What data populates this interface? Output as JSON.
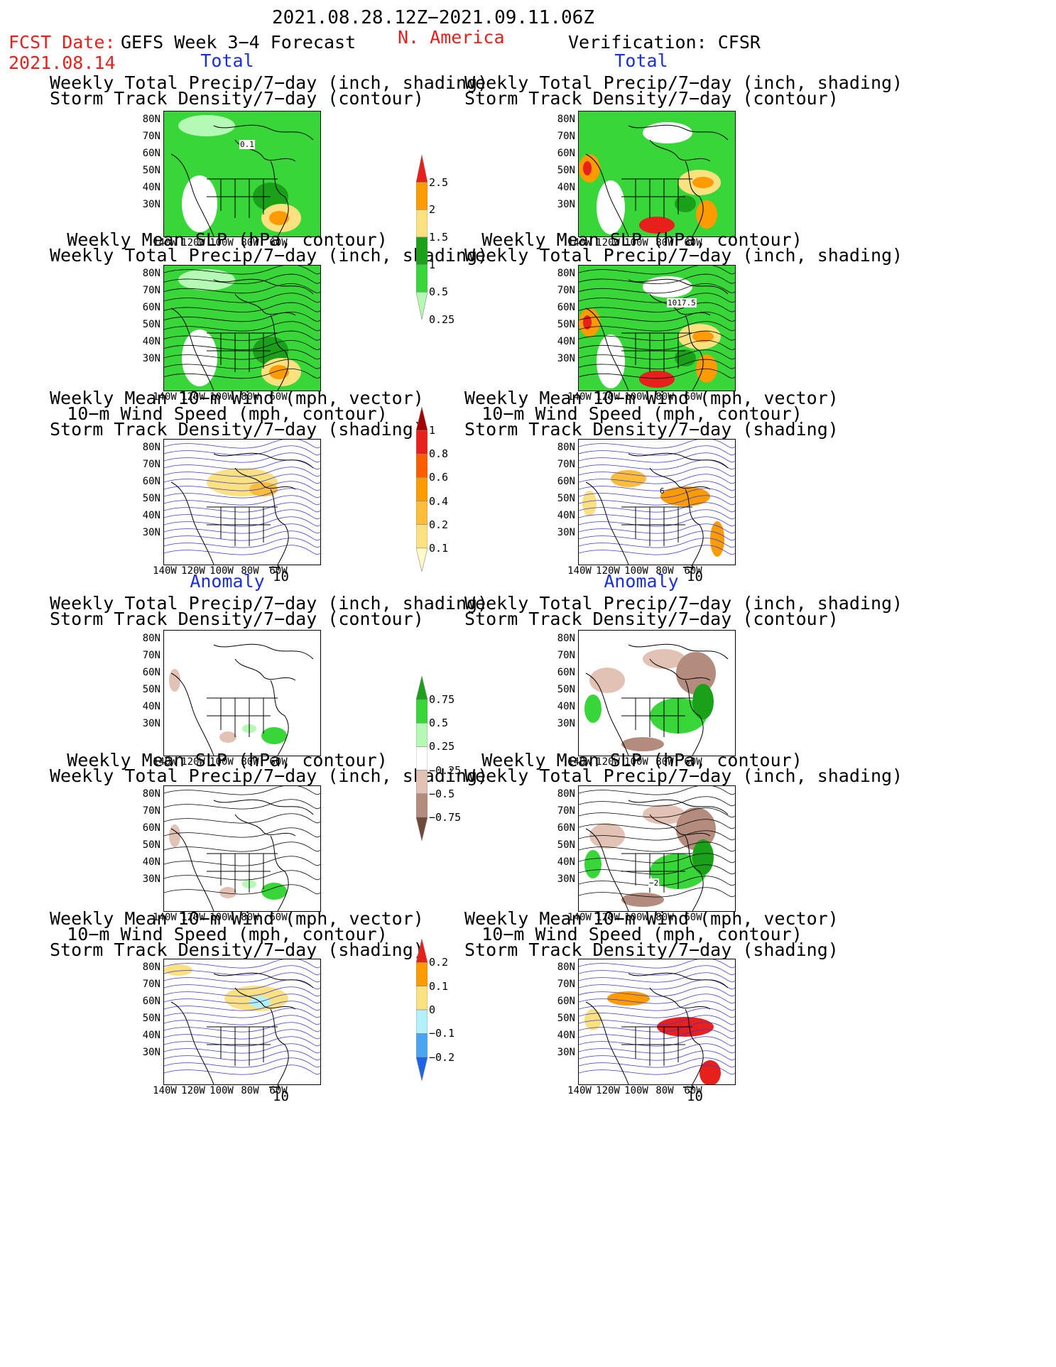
{
  "header": {
    "date_range": "2021.08.28.12Z−2021.09.11.06Z",
    "fcst_label": "FCST Date:",
    "fcst_date": "2021.08.14",
    "model": "GEFS Week 3−4 Forecast",
    "region": "N. America",
    "verification": "Verification: CFSR"
  },
  "sections": {
    "total": "Total",
    "anomaly": "Anomaly"
  },
  "titles": {
    "precip_storm_1": "Weekly Total Precip/7−day (inch, shading)",
    "precip_storm_2": "Storm Track Density/7−day (contour)",
    "slp_1": "Weekly Mean SLP (hPa, contour)",
    "slp_2": "Weekly Total Precip/7−day (inch, shading)",
    "wind_1": "Weekly Mean 10−m Wind (mph, vector)",
    "wind_2": "10−m Wind Speed (mph, contour)",
    "wind_3": "Storm Track Density/7−day (shading)"
  },
  "axes": {
    "lat": [
      "80N",
      "70N",
      "60N",
      "50N",
      "40N",
      "30N"
    ],
    "lon": [
      "140W",
      "120W",
      "100W",
      "80W",
      "60W"
    ]
  },
  "map_annotations": {
    "fc_precip_contour": "0.1",
    "ob_slp_contour": "1017.5",
    "ob_wind_contour": "6",
    "ob_anom_contour": "−2"
  },
  "vector_reference": "10",
  "colorbars": {
    "precip_total": {
      "labels": [
        "2.5",
        "2",
        "1.5",
        "1",
        "0.5",
        "0.25"
      ],
      "colors": [
        "#e8201c",
        "#fd9b00",
        "#fbe17f",
        "#1ba01a",
        "#38d638",
        "#b4fab4"
      ]
    },
    "storm_total": {
      "labels": [
        "1",
        "0.8",
        "0.6",
        "0.4",
        "0.2",
        "0.1"
      ],
      "colors": [
        "#a50000",
        "#e8201c",
        "#fb5d00",
        "#fd9b00",
        "#fbbd3a",
        "#fbe17f",
        "#fffac8"
      ]
    },
    "precip_anom": {
      "labels": [
        "0.75",
        "0.5",
        "0.25",
        "−0.25",
        "−0.5",
        "−0.75"
      ],
      "colors": [
        "#1ba01a",
        "#38d638",
        "#b4fab4",
        "#ffffff",
        "#e2c2b4",
        "#b48c7d",
        "#6e4b3c"
      ]
    },
    "storm_anom": {
      "labels": [
        "0.2",
        "0.1",
        "0",
        "−0.1",
        "−0.2"
      ],
      "colors": [
        "#e8201c",
        "#fd9b00",
        "#fbe17f",
        "#b4f0fa",
        "#4ba5f0",
        "#1e64e6"
      ]
    }
  }
}
